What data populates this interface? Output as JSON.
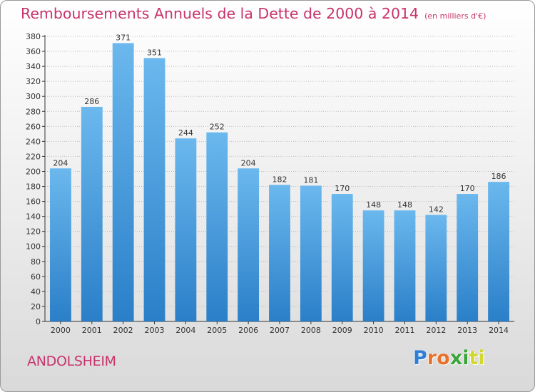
{
  "title": "Remboursements Annuels de la Dette de 2000 à 2014",
  "unit_note": "(en milliers d'€)",
  "city": "ANDOLSHEIM",
  "logo": {
    "text": "Proxiti",
    "letter_colors": [
      "#2f7fd6",
      "#e8712b",
      "#e8712b",
      "#3aa53a",
      "#3aa53a",
      "#d1d82a",
      "#d1d82a"
    ]
  },
  "colors": {
    "title": "#c8336b",
    "bar_top": "#6bb8ee",
    "bar_bottom": "#2a7fc8",
    "grid": "#bdbdbd",
    "axis": "#333333"
  },
  "chart_data": {
    "type": "bar",
    "title": "Remboursements Annuels de la Dette de 2000 à 2014",
    "xlabel": "",
    "ylabel": "",
    "categories": [
      "2000",
      "2001",
      "2002",
      "2003",
      "2004",
      "2005",
      "2006",
      "2007",
      "2008",
      "2009",
      "2010",
      "2011",
      "2012",
      "2013",
      "2014"
    ],
    "values": [
      204,
      286,
      371,
      351,
      244,
      252,
      204,
      182,
      181,
      170,
      148,
      148,
      142,
      170,
      186
    ],
    "ylim": [
      0,
      380
    ],
    "ytick_step": 20,
    "grid": true,
    "data_labels": true
  }
}
